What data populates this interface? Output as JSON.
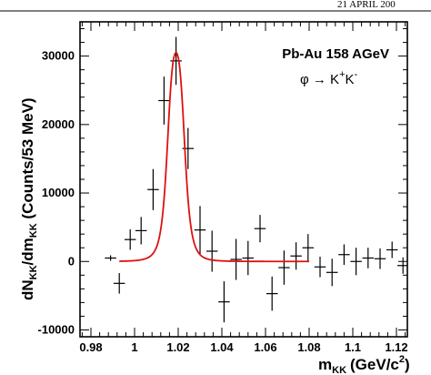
{
  "header": {
    "text": "21 APRIL 200"
  },
  "chart_data": {
    "type": "scatter",
    "title": "",
    "xlabel": {
      "main": "m",
      "sub": "KK",
      "unit_prefix": "(GeV/c",
      "unit_sup": "2",
      "unit_suffix": ")"
    },
    "ylabel": {
      "d1": "dN",
      "s1": "KK",
      "mid": "/dm",
      "s2": "KK",
      "rest": " (Counts/53 MeV)"
    },
    "xlim": [
      0.975,
      1.125
    ],
    "ylim": [
      -11000,
      35000
    ],
    "x_ticks": [
      "0.98",
      "1",
      "1.02",
      "1.04",
      "1.06",
      "1.08",
      "1.1",
      "1.12"
    ],
    "x_tick_values": [
      0.98,
      1.0,
      1.02,
      1.04,
      1.06,
      1.08,
      1.1,
      1.12
    ],
    "y_ticks": [
      "-10000",
      "0",
      "10000",
      "20000",
      "30000"
    ],
    "y_tick_values": [
      -10000,
      0,
      10000,
      20000,
      30000
    ],
    "annotations": [
      {
        "name": "collision-label",
        "text": "Pb-Au 158 AGeV"
      },
      {
        "name": "decay-label",
        "base": "φ → K",
        "sup1": "+",
        "mid": "K",
        "sup2": "-"
      }
    ],
    "series": [
      {
        "type": "data-points-with-errors",
        "color": "#000000",
        "points": [
          {
            "x": 0.989,
            "y": 500,
            "xerr": 0.0026,
            "yerr": 400
          },
          {
            "x": 0.993,
            "y": -3200,
            "xerr": 0.0026,
            "yerr": 1500
          },
          {
            "x": 0.998,
            "y": 3200,
            "xerr": 0.0026,
            "yerr": 1500
          },
          {
            "x": 1.003,
            "y": 4500,
            "xerr": 0.0026,
            "yerr": 2000
          },
          {
            "x": 1.0085,
            "y": 10500,
            "xerr": 0.0026,
            "yerr": 3000
          },
          {
            "x": 1.0135,
            "y": 23500,
            "xerr": 0.0026,
            "yerr": 3500
          },
          {
            "x": 1.019,
            "y": 29300,
            "xerr": 0.0026,
            "yerr": 3500
          },
          {
            "x": 1.0245,
            "y": 16500,
            "xerr": 0.0026,
            "yerr": 3000
          },
          {
            "x": 1.03,
            "y": 4600,
            "xerr": 0.0026,
            "yerr": 3500
          },
          {
            "x": 1.0355,
            "y": 1500,
            "xerr": 0.0026,
            "yerr": 3000
          },
          {
            "x": 1.041,
            "y": -5900,
            "xerr": 0.0026,
            "yerr": 3000
          },
          {
            "x": 1.0465,
            "y": 300,
            "xerr": 0.0026,
            "yerr": 3000
          },
          {
            "x": 1.052,
            "y": 500,
            "xerr": 0.0026,
            "yerr": 2500
          },
          {
            "x": 1.0575,
            "y": 4800,
            "xerr": 0.0026,
            "yerr": 2000
          },
          {
            "x": 1.063,
            "y": -4700,
            "xerr": 0.0026,
            "yerr": 2500
          },
          {
            "x": 1.0685,
            "y": -900,
            "xerr": 0.0026,
            "yerr": 2500
          },
          {
            "x": 1.074,
            "y": 800,
            "xerr": 0.0026,
            "yerr": 2000
          },
          {
            "x": 1.0795,
            "y": 2000,
            "xerr": 0.0026,
            "yerr": 2000
          },
          {
            "x": 1.085,
            "y": -800,
            "xerr": 0.0026,
            "yerr": 1500
          },
          {
            "x": 1.0905,
            "y": -1600,
            "xerr": 0.0026,
            "yerr": 2000
          },
          {
            "x": 1.096,
            "y": 1000,
            "xerr": 0.0026,
            "yerr": 1500
          },
          {
            "x": 1.1015,
            "y": 0,
            "xerr": 0.0026,
            "yerr": 2000
          },
          {
            "x": 1.107,
            "y": 500,
            "xerr": 0.0026,
            "yerr": 1500
          },
          {
            "x": 1.1125,
            "y": 400,
            "xerr": 0.0026,
            "yerr": 1500
          },
          {
            "x": 1.118,
            "y": 1700,
            "xerr": 0.0026,
            "yerr": 1200
          },
          {
            "x": 1.123,
            "y": -600,
            "xerr": 0.0026,
            "yerr": 1200
          }
        ]
      },
      {
        "type": "fit-curve",
        "color": "#dd1111",
        "x_range": [
          0.993,
          1.08
        ],
        "peak": {
          "x": 1.019,
          "y": 30500
        },
        "width": 0.0085,
        "baseline": 0
      }
    ]
  }
}
